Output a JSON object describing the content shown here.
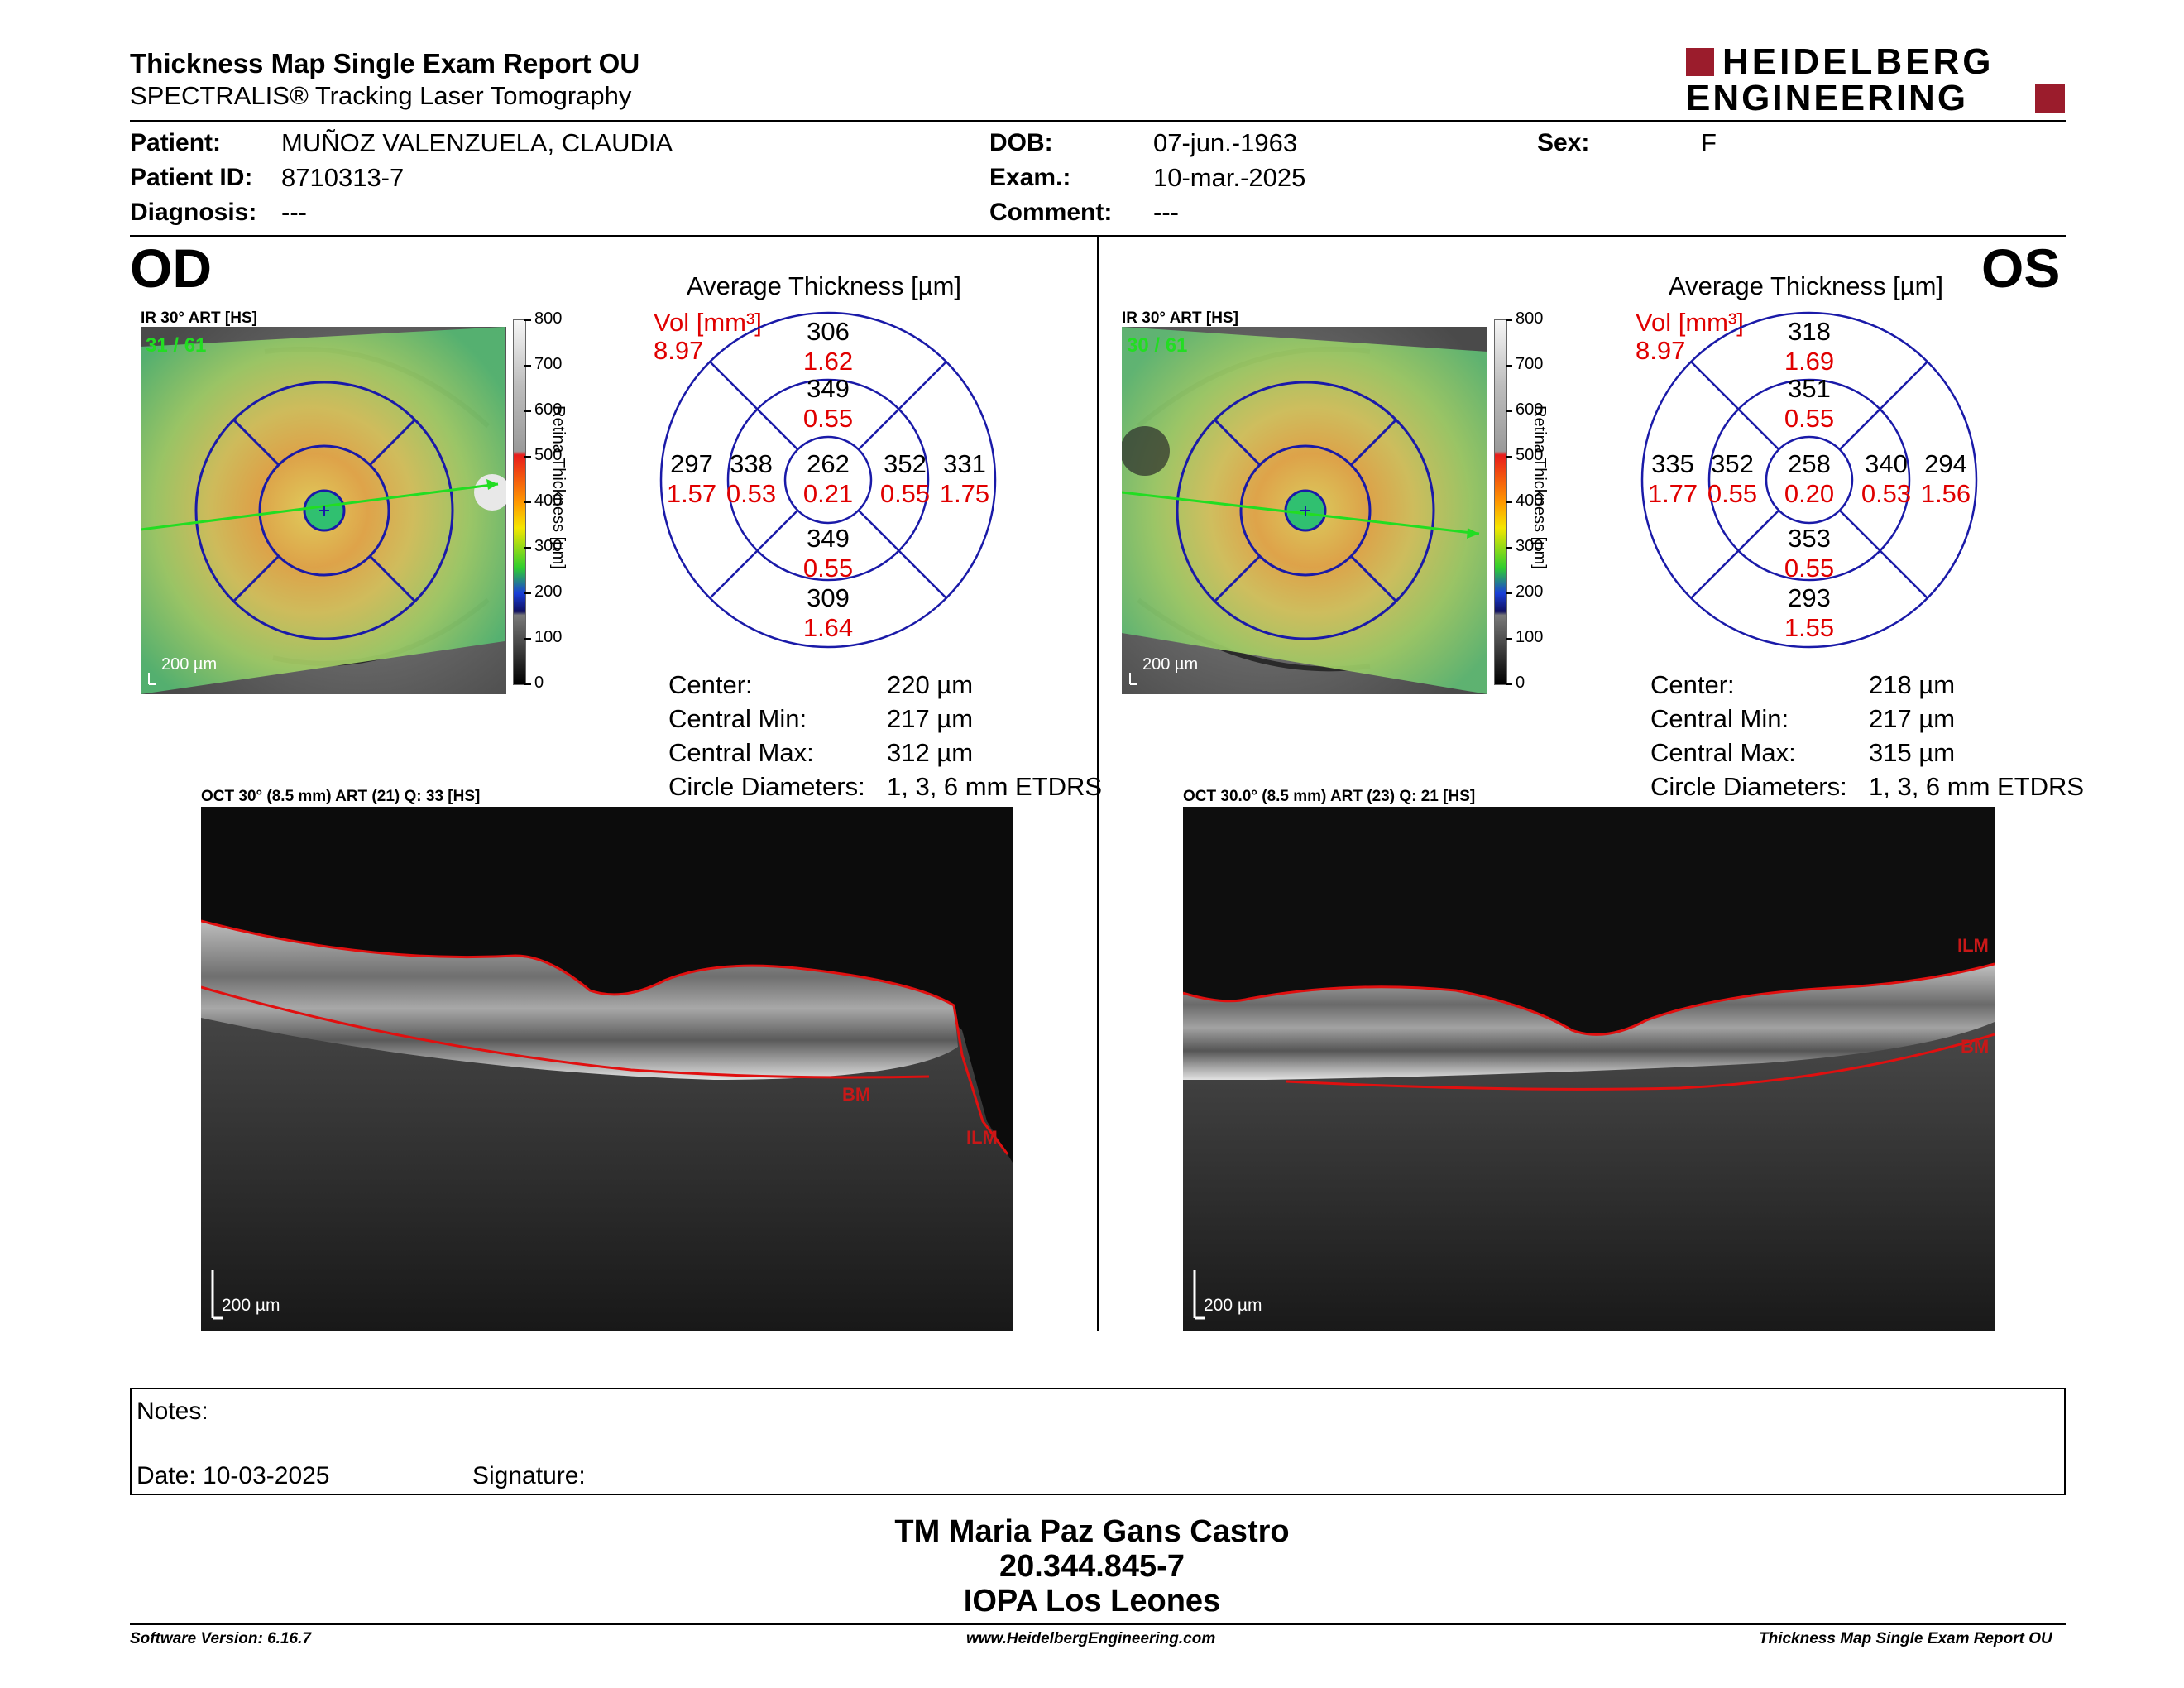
{
  "header": {
    "title": "Thickness Map Single Exam Report OU",
    "subtitle": "SPECTRALIS® Tracking Laser Tomography",
    "logo_line1": "HEIDELBERG",
    "logo_line2": "ENGINEERING"
  },
  "patient": {
    "patient_label": "Patient:",
    "patient_value": "MUÑOZ VALENZUELA, CLAUDIA",
    "id_label": "Patient ID:",
    "id_value": "8710313-7",
    "diagnosis_label": "Diagnosis:",
    "diagnosis_value": "---",
    "dob_label": "DOB:",
    "dob_value": "07-jun.-1963",
    "exam_label": "Exam.:",
    "exam_value": "10-mar.-2025",
    "comment_label": "Comment:",
    "comment_value": "---",
    "sex_label": "Sex:",
    "sex_value": "F"
  },
  "od": {
    "eye": "OD",
    "ir_title": "IR 30° ART [HS]",
    "frame": "31 / 61",
    "scale": "200 µm",
    "avg_title": "Average Thickness [µm]",
    "vol_label": "Vol [mm³]",
    "vol_value": "8.97",
    "grid": {
      "outer_top": [
        "306",
        "1.62"
      ],
      "inner_top": [
        "349",
        "0.55"
      ],
      "outer_left": [
        "297",
        "1.57"
      ],
      "inner_left": [
        "338",
        "0.53"
      ],
      "center": [
        "262",
        "0.21"
      ],
      "inner_right": [
        "352",
        "0.55"
      ],
      "outer_right": [
        "331",
        "1.75"
      ],
      "inner_bottom": [
        "349",
        "0.55"
      ],
      "outer_bottom": [
        "309",
        "1.64"
      ]
    },
    "stats": [
      {
        "label": "Center:",
        "value": "220 µm"
      },
      {
        "label": "Central Min:",
        "value": "217 µm"
      },
      {
        "label": "Central Max:",
        "value": "312 µm"
      },
      {
        "label": "Circle Diameters:",
        "value": "1, 3, 6 mm ETDRS"
      }
    ],
    "oct_title": "OCT 30° (8.5 mm) ART (21) Q: 33 [HS]",
    "oct_scale": "200 µm",
    "bm_label": "BM",
    "ilm_label": "ILM"
  },
  "os": {
    "eye": "OS",
    "ir_title": "IR 30° ART [HS]",
    "frame": "30 / 61",
    "scale": "200 µm",
    "avg_title": "Average Thickness [µm]",
    "vol_label": "Vol [mm³]",
    "vol_value": "8.97",
    "grid": {
      "outer_top": [
        "318",
        "1.69"
      ],
      "inner_top": [
        "351",
        "0.55"
      ],
      "outer_left": [
        "335",
        "1.77"
      ],
      "inner_left": [
        "352",
        "0.55"
      ],
      "center": [
        "258",
        "0.20"
      ],
      "inner_right": [
        "340",
        "0.53"
      ],
      "outer_right": [
        "294",
        "1.56"
      ],
      "inner_bottom": [
        "353",
        "0.55"
      ],
      "outer_bottom": [
        "293",
        "1.55"
      ]
    },
    "stats": [
      {
        "label": "Center:",
        "value": "218 µm"
      },
      {
        "label": "Central Min:",
        "value": "217 µm"
      },
      {
        "label": "Central Max:",
        "value": "315 µm"
      },
      {
        "label": "Circle Diameters:",
        "value": "1, 3, 6 mm ETDRS"
      }
    ],
    "oct_title": "OCT 30.0° (8.5 mm) ART (23) Q: 21 [HS]",
    "oct_scale": "200 µm",
    "bm_label": "BM",
    "ilm_label": "ILM"
  },
  "colorbar": {
    "ticks": [
      "800",
      "700",
      "600",
      "500",
      "400",
      "300",
      "200",
      "100",
      "0"
    ],
    "axis_label": "Retina Thickness [µm]"
  },
  "notes": {
    "notes_label": "Notes:",
    "date_label": "Date: 10-03-2025",
    "signature_label": "Signature:"
  },
  "signer": {
    "name": "TM Maria Paz Gans Castro",
    "id": "20.344.845-7",
    "org": "IOPA Los Leones"
  },
  "footer": {
    "software": "Software Version: 6.16.7",
    "website": "www.HeidelbergEngineering.com",
    "report": "Thickness Map Single Exam Report OU"
  },
  "colors": {
    "accent_red": "#9b1c2c",
    "grid_blue": "#1a1aa8",
    "vol_red": "#e00000",
    "scan_line_green": "#22dd22"
  }
}
